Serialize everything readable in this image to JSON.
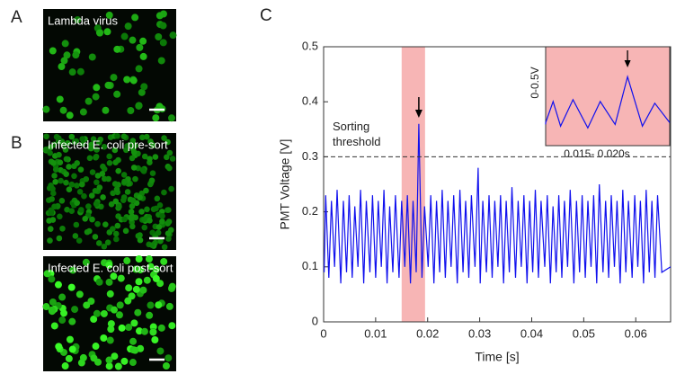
{
  "panels": [
    {
      "label": "A",
      "caption": "Lambda virus"
    },
    {
      "label": "B",
      "caption": "Infected E. coli pre-sort"
    },
    {
      "caption": "Infected E. coli post-sort"
    }
  ],
  "chart_label": "C",
  "chart_data": [
    {
      "type": "line",
      "xlabel": "Time [s]",
      "ylabel": "PMT Voltage [V]",
      "color": "#1010ee",
      "xlim": [
        0,
        0.0667
      ],
      "ylim": [
        0,
        0.5
      ],
      "xticks": [
        0,
        0.01,
        0.02,
        0.03,
        0.04,
        0.05,
        0.06
      ],
      "yticks": [
        0,
        0.1,
        0.2,
        0.3,
        0.4,
        0.5
      ],
      "highlight_x": [
        0.015,
        0.0195
      ],
      "highlight_color": "#f7b5b5",
      "threshold": 0.3,
      "threshold_label": [
        "Sorting",
        "threshold"
      ],
      "x": [
        0.0001,
        0.0004,
        0.001,
        0.0015,
        0.0021,
        0.0026,
        0.0033,
        0.0038,
        0.0044,
        0.0049,
        0.0055,
        0.006,
        0.0066,
        0.0071,
        0.0077,
        0.0082,
        0.0089,
        0.0094,
        0.01,
        0.0105,
        0.0111,
        0.0116,
        0.0122,
        0.0127,
        0.0133,
        0.0138,
        0.0145,
        0.015,
        0.0156,
        0.0161,
        0.0167,
        0.0172,
        0.0178,
        0.0183,
        0.0189,
        0.0194,
        0.0201,
        0.0206,
        0.0212,
        0.0217,
        0.0223,
        0.0228,
        0.0234,
        0.0239,
        0.0245,
        0.025,
        0.0257,
        0.0262,
        0.0268,
        0.0273,
        0.0279,
        0.0284,
        0.0291,
        0.0297,
        0.0301,
        0.0306,
        0.0313,
        0.0318,
        0.0324,
        0.0329,
        0.0335,
        0.034,
        0.0346,
        0.0351,
        0.0357,
        0.0362,
        0.0369,
        0.0374,
        0.038,
        0.0385,
        0.0391,
        0.0396,
        0.0402,
        0.0407,
        0.0413,
        0.0418,
        0.0425,
        0.043,
        0.0436,
        0.0441,
        0.0447,
        0.0452,
        0.0458,
        0.0463,
        0.0469,
        0.0474,
        0.0481,
        0.0486,
        0.0492,
        0.0497,
        0.0503,
        0.0508,
        0.0514,
        0.0519,
        0.0525,
        0.053,
        0.0537,
        0.0542,
        0.0548,
        0.0553,
        0.0559,
        0.0564,
        0.057,
        0.0575,
        0.0581,
        0.0586,
        0.0593,
        0.0598,
        0.0604,
        0.0609,
        0.0615,
        0.062,
        0.0626,
        0.0631,
        0.0637,
        0.0642,
        0.065,
        0.0667
      ],
      "values": [
        0.09,
        0.23,
        0.08,
        0.22,
        0.1,
        0.24,
        0.07,
        0.22,
        0.09,
        0.23,
        0.08,
        0.21,
        0.1,
        0.24,
        0.07,
        0.22,
        0.09,
        0.23,
        0.08,
        0.22,
        0.1,
        0.24,
        0.07,
        0.21,
        0.09,
        0.23,
        0.08,
        0.22,
        0.1,
        0.23,
        0.07,
        0.22,
        0.09,
        0.36,
        0.08,
        0.21,
        0.1,
        0.23,
        0.07,
        0.22,
        0.09,
        0.24,
        0.08,
        0.22,
        0.1,
        0.23,
        0.07,
        0.24,
        0.09,
        0.22,
        0.08,
        0.23,
        0.1,
        0.28,
        0.07,
        0.22,
        0.09,
        0.23,
        0.08,
        0.22,
        0.1,
        0.23,
        0.07,
        0.22,
        0.09,
        0.245,
        0.08,
        0.22,
        0.1,
        0.23,
        0.07,
        0.22,
        0.09,
        0.24,
        0.08,
        0.22,
        0.1,
        0.23,
        0.07,
        0.21,
        0.09,
        0.23,
        0.08,
        0.22,
        0.1,
        0.24,
        0.07,
        0.22,
        0.09,
        0.23,
        0.08,
        0.22,
        0.1,
        0.23,
        0.07,
        0.25,
        0.09,
        0.22,
        0.08,
        0.23,
        0.1,
        0.22,
        0.07,
        0.24,
        0.09,
        0.22,
        0.08,
        0.23,
        0.1,
        0.22,
        0.07,
        0.24,
        0.09,
        0.22,
        0.08,
        0.23,
        0.09,
        0.1
      ]
    },
    {
      "type": "line",
      "xlabel": "0.015- 0.020s",
      "ylabel": "0-0.5V",
      "color": "#1010ee",
      "background": "#f7b5b5",
      "xlim": [
        0.015,
        0.02
      ],
      "ylim": [
        0,
        0.5
      ],
      "x": [
        0.015,
        0.015,
        0.0153,
        0.0156,
        0.0161,
        0.0167,
        0.0172,
        0.0178,
        0.0183,
        0.0189,
        0.0194,
        0.02
      ],
      "values": [
        0.09,
        0.1,
        0.22,
        0.08,
        0.23,
        0.07,
        0.22,
        0.09,
        0.36,
        0.08,
        0.21,
        0.1
      ]
    }
  ]
}
